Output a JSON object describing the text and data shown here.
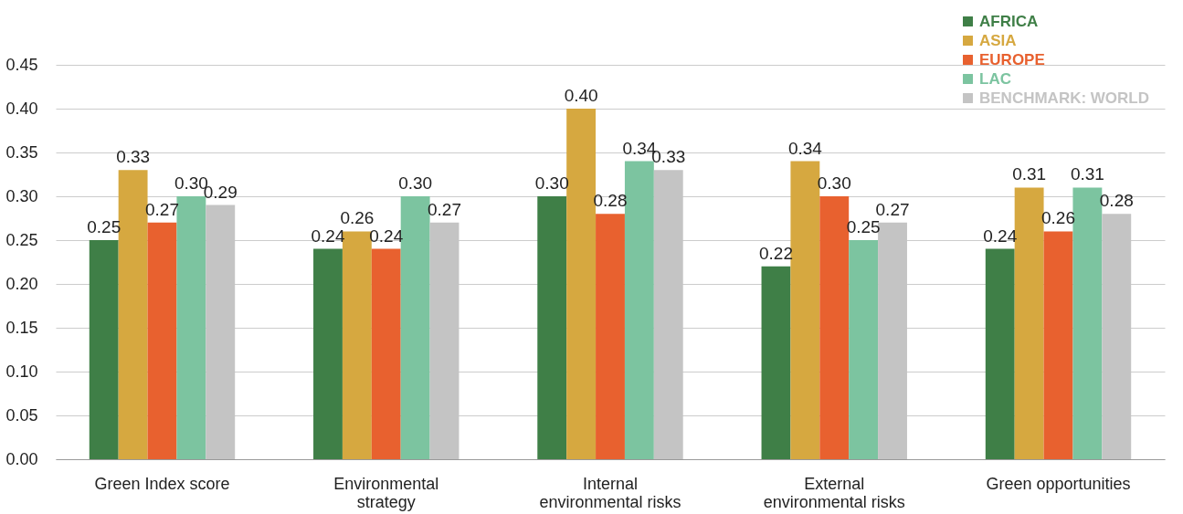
{
  "chart_data": {
    "type": "bar",
    "categories": [
      "Green Index score",
      "Environmental strategy",
      "Internal environmental risks",
      "External environmental risks",
      "Green opportunities"
    ],
    "series": [
      {
        "name": "AFRICA",
        "color": "#3f7f47",
        "values": [
          0.25,
          0.24,
          0.3,
          0.22,
          0.24
        ],
        "value_labels": [
          "0.25",
          "0.24",
          "0.30",
          "0.22",
          "0.24"
        ]
      },
      {
        "name": "ASIA",
        "color": "#d6a840",
        "values": [
          0.33,
          0.26,
          0.4,
          0.34,
          0.31
        ],
        "value_labels": [
          "0.33",
          "0.26",
          "0.40",
          "0.34",
          "0.31"
        ]
      },
      {
        "name": "EUROPE",
        "color": "#e8612f",
        "values": [
          0.27,
          0.24,
          0.28,
          0.3,
          0.26
        ],
        "value_labels": [
          "0.27",
          "0.24",
          "0.28",
          "0.30",
          "0.26"
        ]
      },
      {
        "name": "LAC",
        "color": "#7cc4a0",
        "values": [
          0.3,
          0.3,
          0.34,
          0.25,
          0.31
        ],
        "value_labels": [
          "0.30",
          "0.30",
          "0.34",
          "0.25",
          "0.31"
        ]
      },
      {
        "name": "BENCHMARK: WORLD",
        "color": "#c4c4c4",
        "values": [
          0.29,
          0.27,
          0.33,
          0.27,
          0.28
        ],
        "value_labels": [
          "0.29",
          "0.27",
          "0.33",
          "0.27",
          "0.28"
        ]
      }
    ],
    "ylim": [
      0,
      0.45
    ],
    "yticks": [
      {
        "value": 0,
        "label": "0.00"
      },
      0.05,
      {
        "value": 0.1,
        "label": "0.10"
      },
      0.15,
      {
        "value": 0.2,
        "label": "0.20"
      },
      0.25,
      {
        "value": 0.3,
        "label": "0.30"
      },
      0.35,
      {
        "value": 0.4,
        "label": "0.40"
      },
      0.45
    ],
    "grid": "y",
    "legend": "top right"
  }
}
